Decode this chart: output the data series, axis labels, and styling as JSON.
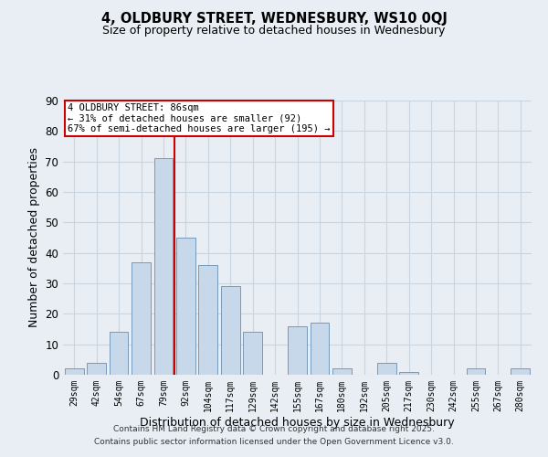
{
  "title": "4, OLDBURY STREET, WEDNESBURY, WS10 0QJ",
  "subtitle": "Size of property relative to detached houses in Wednesbury",
  "xlabel": "Distribution of detached houses by size in Wednesbury",
  "ylabel": "Number of detached properties",
  "bar_labels": [
    "29sqm",
    "42sqm",
    "54sqm",
    "67sqm",
    "79sqm",
    "92sqm",
    "104sqm",
    "117sqm",
    "129sqm",
    "142sqm",
    "155sqm",
    "167sqm",
    "180sqm",
    "192sqm",
    "205sqm",
    "217sqm",
    "230sqm",
    "242sqm",
    "255sqm",
    "267sqm",
    "280sqm"
  ],
  "bar_values": [
    2,
    4,
    14,
    37,
    71,
    45,
    36,
    29,
    14,
    0,
    16,
    17,
    2,
    0,
    4,
    1,
    0,
    0,
    2,
    0,
    2
  ],
  "bar_color": "#c8d8eb",
  "bar_edge_color": "#7799bb",
  "grid_color": "#c8d4e0",
  "background_color": "#e8eef4",
  "plot_bg_color": "#ffffff",
  "vline_color": "#cc0000",
  "vline_index": 4.5,
  "annotation_line1": "4 OLDBURY STREET: 86sqm",
  "annotation_line2": "← 31% of detached houses are smaller (92)",
  "annotation_line3": "67% of semi-detached houses are larger (195) →",
  "annotation_box_color": "#ffffff",
  "annotation_box_edge": "#cc0000",
  "ylim": [
    0,
    90
  ],
  "yticks": [
    0,
    10,
    20,
    30,
    40,
    50,
    60,
    70,
    80,
    90
  ],
  "footer1": "Contains HM Land Registry data © Crown copyright and database right 2025.",
  "footer2": "Contains public sector information licensed under the Open Government Licence v3.0."
}
